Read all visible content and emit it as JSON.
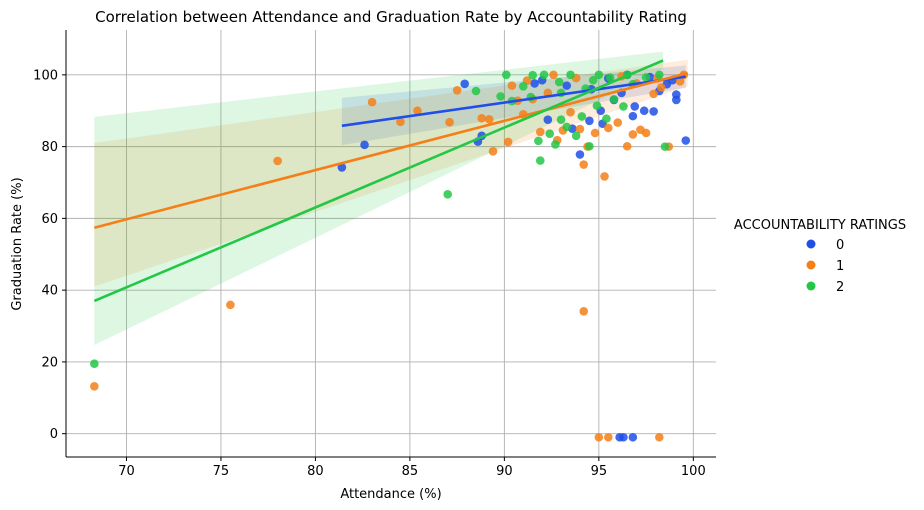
{
  "chart_data": {
    "type": "scatter",
    "title": "Correlation between Attendance and Graduation Rate by Accountability Rating",
    "xlabel": "Attendance (%)",
    "ylabel": "Graduation Rate (%)",
    "xlim": [
      66.8,
      101.2
    ],
    "ylim": [
      -6.5,
      112.5
    ],
    "xticks": [
      70,
      75,
      80,
      85,
      90,
      95,
      100
    ],
    "yticks": [
      0,
      20,
      40,
      60,
      80,
      100
    ],
    "grid": true,
    "legend": {
      "title": "ACCOUNTABILITY RATINGS",
      "placement": "right"
    },
    "series": [
      {
        "name": "0",
        "color": "#1f4fe8",
        "points": [
          [
            81.4,
            74.2
          ],
          [
            82.6,
            80.5
          ],
          [
            87.9,
            97.5
          ],
          [
            88.6,
            81.4
          ],
          [
            88.8,
            83.0
          ],
          [
            92.3,
            87.5
          ],
          [
            93.6,
            85.0
          ],
          [
            94.0,
            77.8
          ],
          [
            94.5,
            87.2
          ],
          [
            95.1,
            90.0
          ],
          [
            95.8,
            93.0
          ],
          [
            96.2,
            95.0
          ],
          [
            96.8,
            88.5
          ],
          [
            97.4,
            90.0
          ],
          [
            97.9,
            89.8
          ],
          [
            98.2,
            95.5
          ],
          [
            98.6,
            97.4
          ],
          [
            98.9,
            98.5
          ],
          [
            99.1,
            94.5
          ],
          [
            99.1,
            93.0
          ],
          [
            99.6,
            81.7
          ],
          [
            94.6,
            96.0
          ],
          [
            95.5,
            99.0
          ],
          [
            96.5,
            100.0
          ],
          [
            93.3,
            97.0
          ],
          [
            92.0,
            98.5
          ],
          [
            91.6,
            97.6
          ],
          [
            95.2,
            86.4
          ],
          [
            96.9,
            91.2
          ],
          [
            97.7,
            99.4
          ],
          [
            96.1,
            -1.0
          ],
          [
            96.3,
            -1.0
          ],
          [
            96.8,
            -1.0
          ]
        ],
        "fit": {
          "x0": 81.4,
          "x1": 99.6,
          "y0": 85.8,
          "y1": 99.5,
          "ci_lo": [
            80.4,
            96.4
          ],
          "ci_hi": [
            93.6,
            102.6
          ]
        }
      },
      {
        "name": "1",
        "color": "#f57f17",
        "points": [
          [
            68.3,
            13.2
          ],
          [
            75.5,
            35.9
          ],
          [
            78.0,
            76.0
          ],
          [
            83.0,
            92.4
          ],
          [
            84.5,
            86.9
          ],
          [
            85.4,
            90.0
          ],
          [
            87.1,
            86.8
          ],
          [
            87.5,
            95.7
          ],
          [
            88.8,
            87.9
          ],
          [
            89.2,
            87.6
          ],
          [
            89.4,
            78.7
          ],
          [
            90.2,
            81.3
          ],
          [
            90.4,
            97.0
          ],
          [
            91.0,
            89.0
          ],
          [
            91.5,
            93.2
          ],
          [
            91.9,
            84.1
          ],
          [
            92.3,
            95.0
          ],
          [
            92.8,
            81.8
          ],
          [
            93.1,
            84.5
          ],
          [
            93.5,
            89.6
          ],
          [
            94.0,
            84.9
          ],
          [
            94.2,
            75.0
          ],
          [
            94.2,
            34.1
          ],
          [
            94.4,
            80.0
          ],
          [
            94.8,
            83.8
          ],
          [
            95.3,
            71.7
          ],
          [
            95.5,
            85.2
          ],
          [
            96.0,
            86.7
          ],
          [
            96.5,
            80.1
          ],
          [
            96.8,
            83.4
          ],
          [
            97.2,
            84.7
          ],
          [
            97.5,
            83.8
          ],
          [
            97.9,
            94.7
          ],
          [
            98.3,
            96.5
          ],
          [
            98.7,
            80.0
          ],
          [
            99.5,
            100.0
          ],
          [
            99.3,
            98.2
          ],
          [
            93.8,
            99.1
          ],
          [
            92.6,
            100.0
          ],
          [
            91.2,
            98.4
          ],
          [
            96.2,
            99.6
          ],
          [
            97.0,
            97.6
          ],
          [
            98.1,
            99.0
          ],
          [
            90.7,
            92.8
          ],
          [
            95.0,
            -1.0
          ],
          [
            95.5,
            -1.0
          ],
          [
            98.2,
            -1.0
          ]
        ],
        "fit": {
          "x0": 68.3,
          "x1": 99.7,
          "y0": 57.4,
          "y1": 100.5,
          "ci_lo": [
            41.0,
            96.8
          ],
          "ci_hi": [
            81.0,
            104.2
          ]
        }
      },
      {
        "name": "2",
        "color": "#22c745",
        "points": [
          [
            68.3,
            19.5
          ],
          [
            87.0,
            66.7
          ],
          [
            88.5,
            95.5
          ],
          [
            89.8,
            94.0
          ],
          [
            90.1,
            100.0
          ],
          [
            90.4,
            92.7
          ],
          [
            91.0,
            96.8
          ],
          [
            91.5,
            99.9
          ],
          [
            91.8,
            81.6
          ],
          [
            91.9,
            76.1
          ],
          [
            92.4,
            83.6
          ],
          [
            92.7,
            80.6
          ],
          [
            93.0,
            87.5
          ],
          [
            93.3,
            85.5
          ],
          [
            93.8,
            83.0
          ],
          [
            94.1,
            88.4
          ],
          [
            94.5,
            80.1
          ],
          [
            94.9,
            91.4
          ],
          [
            95.4,
            87.8
          ],
          [
            95.8,
            93.2
          ],
          [
            96.3,
            91.2
          ],
          [
            96.8,
            97.4
          ],
          [
            97.5,
            99.3
          ],
          [
            98.5,
            80.0
          ],
          [
            98.2,
            100.0
          ],
          [
            92.1,
            100.0
          ],
          [
            93.5,
            100.0
          ],
          [
            94.7,
            98.5
          ],
          [
            95.6,
            99.2
          ],
          [
            96.5,
            100.0
          ],
          [
            93.0,
            95.0
          ],
          [
            91.4,
            93.8
          ],
          [
            92.9,
            98.0
          ],
          [
            94.3,
            96.2
          ],
          [
            95.0,
            100.0
          ]
        ],
        "fit": {
          "x0": 68.3,
          "x1": 98.4,
          "y0": 37.0,
          "y1": 104.0,
          "ci_lo": [
            24.7,
            101.6
          ],
          "ci_hi": [
            88.3,
            106.5
          ]
        }
      }
    ]
  }
}
